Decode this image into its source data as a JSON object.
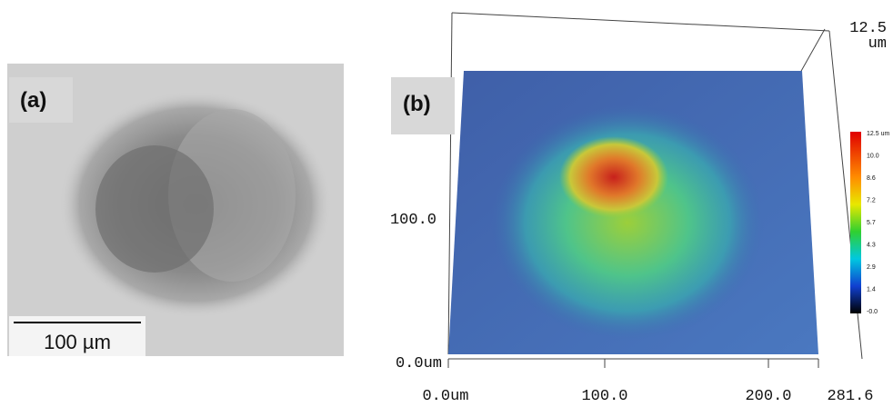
{
  "panels": {
    "a": {
      "label": "(a)",
      "scale_bar": "100 µm"
    },
    "b": {
      "label": "(b)",
      "x_axis": {
        "labels": [
          "0.0um",
          "100.0",
          "200.0",
          "281.6"
        ]
      },
      "y_axis": {
        "labels": [
          "100.0",
          "0.0um"
        ]
      },
      "z_axis": {
        "value": "12.5",
        "unit": "um"
      },
      "colorbar": {
        "labels": [
          "12.5 um",
          "10.0",
          "8.6",
          "7.2",
          "5.7",
          "4.3",
          "2.9",
          "1.4",
          "-0.0"
        ]
      }
    }
  }
}
